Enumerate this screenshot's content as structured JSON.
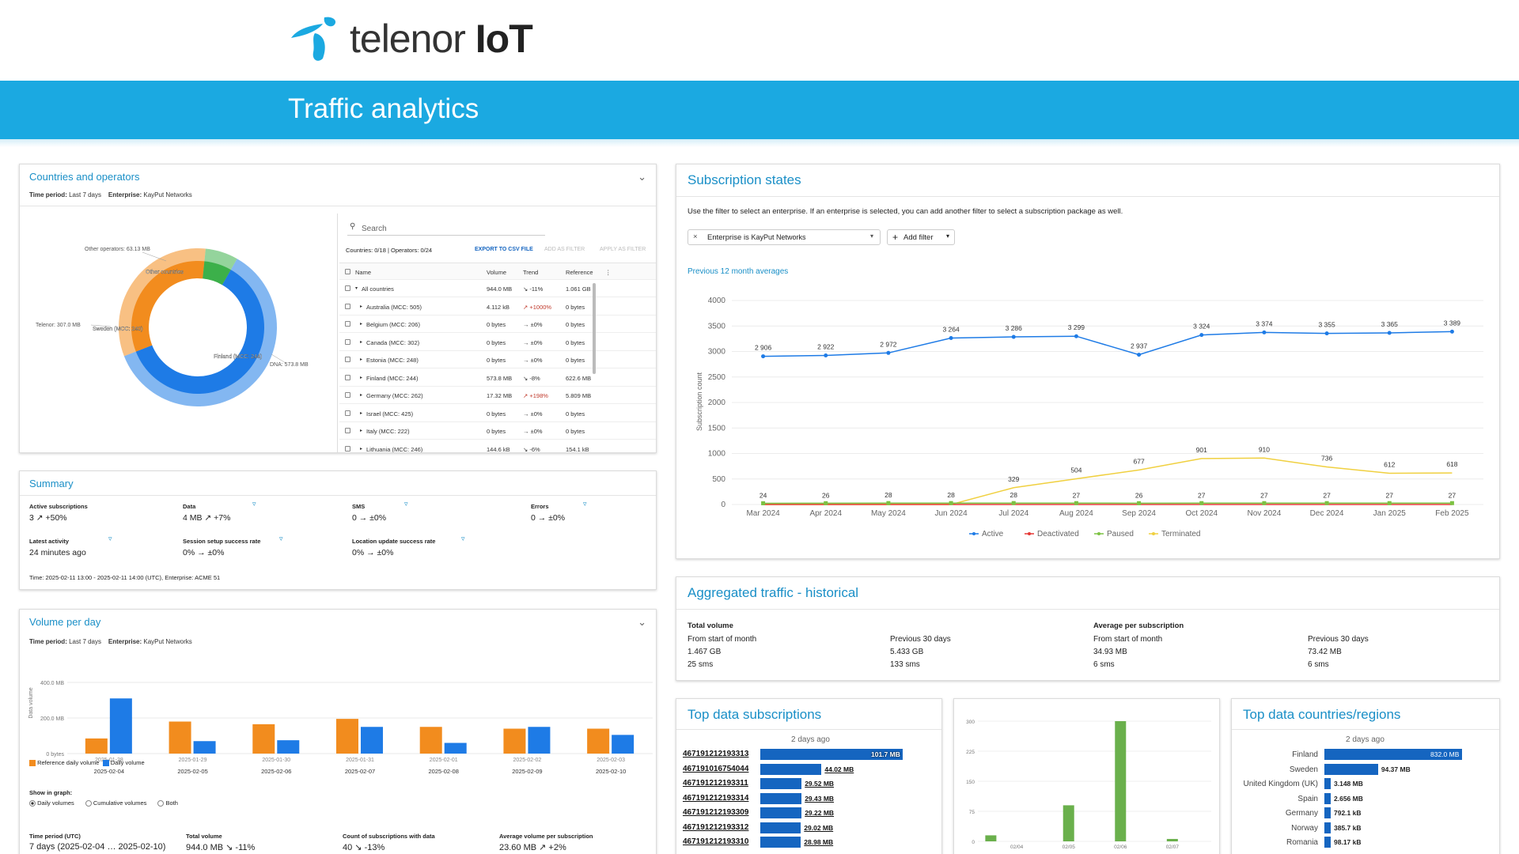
{
  "brand": {
    "name_light": "telenor ",
    "name_bold": "IoT"
  },
  "page_title": "Traffic analytics",
  "countries": {
    "title": "Countries and operators",
    "time_label": "Time period:",
    "time_value": "Last 7 days",
    "ent_label": "Enterprise:",
    "ent_value": "KayPut Networks",
    "search_placeholder": "Search",
    "counts": "Countries: 0/18 | Operators: 0/24",
    "export": "EXPORT TO CSV FILE",
    "add_filter": "ADD AS FILTER",
    "apply_filter": "APPLY AS FILTER",
    "columns": [
      "Name",
      "Volume",
      "Trend",
      "Reference"
    ],
    "rows": [
      {
        "name": "All countries",
        "volume": "944.0 MB",
        "trend": "↘ -11%",
        "ref": "1.061 GB"
      },
      {
        "name": "Australia (MCC: 505)",
        "volume": "4.112 kB",
        "trend": "↗ +1000%",
        "ref": "0 bytes"
      },
      {
        "name": "Belgium (MCC: 206)",
        "volume": "0 bytes",
        "trend": "→ ±0%",
        "ref": "0 bytes"
      },
      {
        "name": "Canada (MCC: 302)",
        "volume": "0 bytes",
        "trend": "→ ±0%",
        "ref": "0 bytes"
      },
      {
        "name": "Estonia (MCC: 248)",
        "volume": "0 bytes",
        "trend": "→ ±0%",
        "ref": "0 bytes"
      },
      {
        "name": "Finland (MCC: 244)",
        "volume": "573.8 MB",
        "trend": "↘ -8%",
        "ref": "622.6 MB"
      },
      {
        "name": "Germany (MCC: 262)",
        "volume": "17.32 MB",
        "trend": "↗ +198%",
        "ref": "5.809 MB"
      },
      {
        "name": "Israel (MCC: 425)",
        "volume": "0 bytes",
        "trend": "→ ±0%",
        "ref": "0 bytes"
      },
      {
        "name": "Italy (MCC: 222)",
        "volume": "0 bytes",
        "trend": "→ ±0%",
        "ref": "0 bytes"
      },
      {
        "name": "Lithuania (MCC: 246)",
        "volume": "144.6 kB",
        "trend": "↘ -6%",
        "ref": "154.1 kB"
      }
    ],
    "donut_labels": {
      "other_ops": "Other operators: 63.13 MB",
      "telenor": "Telenor: 307.0 MB",
      "dna": "DNA: 573.8 MB",
      "other_countries": "Other countries",
      "sweden": "Sweden (MCC: 240)",
      "finland": "Finland (MCC: 244)"
    },
    "colors": {
      "finland": "#1e7be6",
      "sweden": "#f28c1e",
      "other": "#3cb04a"
    }
  },
  "summary": {
    "title": "Summary",
    "items": [
      {
        "label": "Active subscriptions",
        "value": "3 ↗ +50%"
      },
      {
        "label": "Data",
        "value": "4 MB ↗ +7%"
      },
      {
        "label": "SMS",
        "value": "0 → ±0%"
      },
      {
        "label": "Errors",
        "value": "0 → ±0%"
      },
      {
        "label": "Latest activity",
        "value": "24 minutes ago"
      },
      {
        "label": "Session setup success rate",
        "value": "0% → ±0%"
      },
      {
        "label": "Location update success rate",
        "value": "0% → ±0%"
      }
    ],
    "footer": "Time: 2025-02-11 13:00 - 2025-02-11 14:00 (UTC), Enterprise: ACME 51"
  },
  "volume": {
    "title": "Volume per day",
    "time_label": "Time period:",
    "time_value": "Last 7 days",
    "ent_label": "Enterprise:",
    "ent_value": "KayPut Networks",
    "y_label": "Data volume",
    "y_ticks": [
      "400.0 MB",
      "200.0 MB",
      "0 bytes"
    ],
    "legend_ref": "Reference daily volume",
    "legend_daily": "Daily volume",
    "show_in_graph": "Show in graph:",
    "radio": [
      "Daily volumes",
      "Cumulative volumes",
      "Both"
    ],
    "stats": [
      {
        "label": "Time period (UTC)",
        "value": "7 days (2025-02-04 … 2025-02-10)"
      },
      {
        "label": "Total volume",
        "value": "944.0 MB ↘ -11%"
      },
      {
        "label": "Count of subscriptions with data",
        "value": "40 ↘ -13%"
      },
      {
        "label": "Average volume per subscription",
        "value": "23.60 MB ↗ +2%"
      }
    ]
  },
  "states": {
    "title": "Subscription states",
    "desc": "Use the filter to select an enterprise. If an enterprise is selected, you can add another filter to select a subscription package as well.",
    "chip_prefix": "Enterprise",
    "chip_is": "is",
    "chip_value": "KayPut Networks",
    "add_filter": "Add filter",
    "averages": "Previous 12 month averages",
    "y_label": "Subscription count"
  },
  "aggregated": {
    "title": "Aggregated traffic - historical",
    "total_label": "Total volume",
    "avg_label": "Average per subscription",
    "cols": [
      {
        "head": "From start of month",
        "v1": "1.467 GB",
        "v2": "25 sms"
      },
      {
        "head": "Previous 30 days",
        "v1": "5.433 GB",
        "v2": "133 sms"
      },
      {
        "head": "From start of month",
        "v1": "34.93 MB",
        "v2": "6 sms"
      },
      {
        "head": "Previous 30 days",
        "v1": "73.42 MB",
        "v2": "6 sms"
      }
    ]
  },
  "top_subs": {
    "title": "Top data subscriptions",
    "period": "2 days ago",
    "rows": [
      {
        "id": "467191212193313",
        "value": "101.7 MB",
        "frac": 1.0
      },
      {
        "id": "467191016754044",
        "value": "44.02 MB",
        "frac": 0.43
      },
      {
        "id": "467191212193311",
        "value": "29.52 MB",
        "frac": 0.29
      },
      {
        "id": "467191212193314",
        "value": "29.43 MB",
        "frac": 0.29
      },
      {
        "id": "467191212193309",
        "value": "29.22 MB",
        "frac": 0.29
      },
      {
        "id": "467191212193312",
        "value": "29.02 MB",
        "frac": 0.285
      },
      {
        "id": "467191212193310",
        "value": "28.98 MB",
        "frac": 0.285
      }
    ]
  },
  "top_countries": {
    "title": "Top data countries/regions",
    "period": "2 days ago",
    "rows": [
      {
        "name": "Finland",
        "value": "832.0 MB",
        "frac": 1.0
      },
      {
        "name": "Sweden",
        "value": "94.37 MB",
        "frac": 0.39
      },
      {
        "name": "United Kingdom (UK)",
        "value": "3.148 MB",
        "frac": 0.03
      },
      {
        "name": "Spain",
        "value": "2.656 MB",
        "frac": 0.025
      },
      {
        "name": "Germany",
        "value": "792.1 kB",
        "frac": 0.02
      },
      {
        "name": "Norway",
        "value": "385.7 kB",
        "frac": 0.015
      },
      {
        "name": "Romania",
        "value": "98.17 kB",
        "frac": 0.01
      }
    ]
  },
  "chart_data": [
    {
      "type": "line",
      "title": "",
      "ylabel": "Subscription count",
      "ylim": [
        0,
        4000
      ],
      "y_ticks": [
        0,
        500,
        1000,
        1500,
        2000,
        2500,
        3000,
        3500,
        4000
      ],
      "categories": [
        "Mar 2024",
        "Apr 2024",
        "May 2024",
        "Jun 2024",
        "Jul 2024",
        "Aug 2024",
        "Sep 2024",
        "Oct 2024",
        "Nov 2024",
        "Dec 2024",
        "Jan 2025",
        "Feb 2025"
      ],
      "series": [
        {
          "name": "Active",
          "color": "#1e7be6",
          "values": [
            2906,
            2922,
            2972,
            3264,
            3286,
            3299,
            2937,
            3324,
            3374,
            3355,
            3365,
            3389
          ],
          "labels": [
            "2 906",
            "2 922",
            "2 972",
            "3 264",
            "3 286",
            "3 299",
            "2 937",
            "3 324",
            "3 374",
            "3 355",
            "3 365",
            "3 389"
          ]
        },
        {
          "name": "Deactivated",
          "color": "#e53935",
          "values": [
            0,
            0,
            0,
            0,
            0,
            0,
            0,
            0,
            0,
            0,
            0,
            0
          ]
        },
        {
          "name": "Paused",
          "color": "#7cc243",
          "values": [
            24,
            26,
            28,
            28,
            28,
            27,
            26,
            27,
            27,
            27,
            27,
            27
          ],
          "labels": [
            "24",
            "26",
            "28",
            "28",
            "28",
            "27",
            "26",
            "27",
            "27",
            "27",
            "27",
            "27"
          ]
        },
        {
          "name": "Terminated",
          "color": "#f0d040",
          "values": [
            0,
            0,
            0,
            0,
            329,
            504,
            677,
            901,
            910,
            736,
            612,
            618
          ],
          "labels": [
            "",
            "",
            "",
            "",
            "329",
            "504",
            "677",
            "901",
            "910",
            "736",
            "612",
            "618"
          ]
        }
      ],
      "legend": "bottom"
    },
    {
      "type": "bar",
      "title": "",
      "ylabel": "Data volume",
      "ylim": [
        0,
        400
      ],
      "unit": "MB",
      "categories": [
        "2025-02-04",
        "2025-02-05",
        "2025-02-06",
        "2025-02-07",
        "2025-02-08",
        "2025-02-09",
        "2025-02-10"
      ],
      "ref_categories": [
        "2025-01-28",
        "2025-01-29",
        "2025-01-30",
        "2025-01-31",
        "2025-02-01",
        "2025-02-02",
        "2025-02-03"
      ],
      "series": [
        {
          "name": "Reference daily volume",
          "color": "#f28c1e",
          "values": [
            85,
            180,
            165,
            195,
            150,
            140,
            140
          ]
        },
        {
          "name": "Daily volume",
          "color": "#1e7be6",
          "values": [
            310,
            70,
            75,
            150,
            60,
            150,
            105
          ]
        }
      ]
    },
    {
      "type": "bar",
      "title": "",
      "ylim": [
        0,
        300
      ],
      "y_ticks": [
        "300",
        "225",
        "150",
        "75",
        "0"
      ],
      "categories": [
        "",
        "02/04",
        "",
        "02/05",
        "",
        "02/06",
        "",
        "02/07",
        ""
      ],
      "values": [
        15,
        0,
        0,
        90,
        0,
        300,
        0,
        6,
        0
      ],
      "color": "#6ab04c"
    },
    {
      "type": "pie",
      "title": "",
      "slices": [
        {
          "name": "Finland (MCC: 244)",
          "value": 573.8,
          "color": "#1e7be6"
        },
        {
          "name": "Sweden (MCC: 240)",
          "value": 307.0,
          "color": "#f28c1e"
        },
        {
          "name": "Other countries",
          "value": 63.13,
          "color": "#3cb04a"
        }
      ]
    }
  ]
}
